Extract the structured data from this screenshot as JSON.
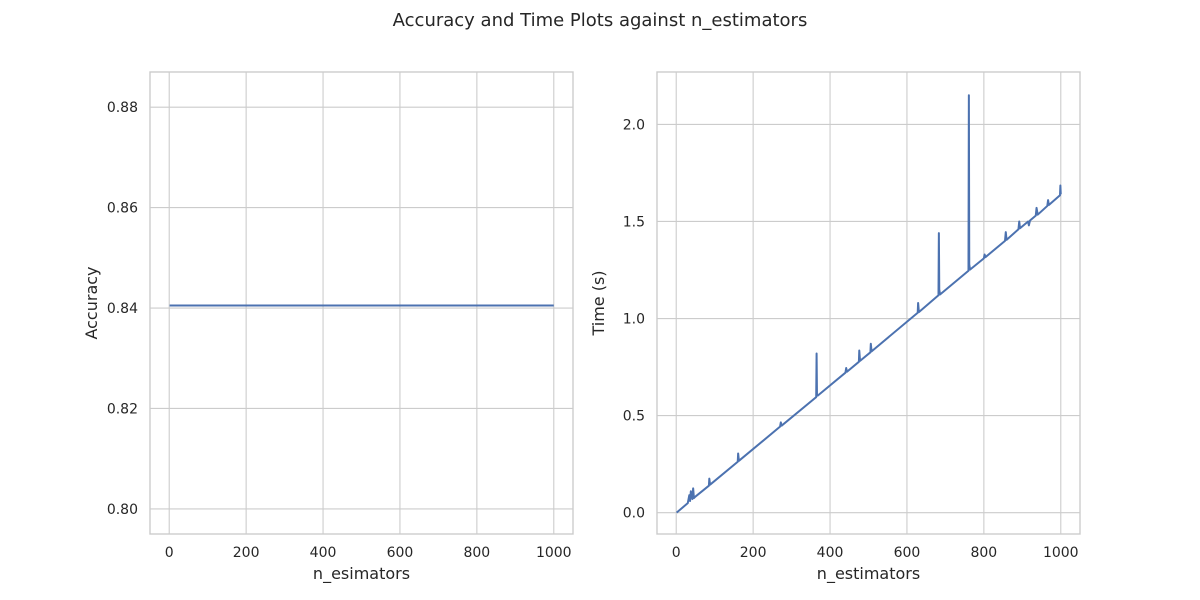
{
  "suptitle": "Accuracy and Time Plots against n_estimators",
  "colors": {
    "line": "#4c72b0",
    "grid": "#cccccc",
    "spine": "#cccccc",
    "text": "#262626",
    "background": "#ffffff"
  },
  "chart_data": [
    {
      "type": "line",
      "title": "",
      "xlabel": "n_esimators",
      "ylabel": "Accuracy",
      "xlim": [
        -50,
        1050
      ],
      "ylim": [
        0.795,
        0.887
      ],
      "xticks": [
        0,
        200,
        400,
        600,
        800,
        1000
      ],
      "xtick_labels": [
        "0",
        "200",
        "400",
        "600",
        "800",
        "1000"
      ],
      "yticks": [
        0.8,
        0.82,
        0.84,
        0.86,
        0.88
      ],
      "ytick_labels": [
        "0.80",
        "0.82",
        "0.84",
        "0.86",
        "0.88"
      ],
      "grid": true,
      "series": [
        {
          "x": [
            1,
            1000
          ],
          "y": [
            0.8405,
            0.8405
          ]
        }
      ]
    },
    {
      "type": "line",
      "title": "",
      "xlabel": "n_estimators",
      "ylabel": "Time (s)",
      "xlim": [
        -50,
        1050
      ],
      "ylim": [
        -0.11,
        2.27
      ],
      "xticks": [
        0,
        200,
        400,
        600,
        800,
        1000
      ],
      "xtick_labels": [
        "0",
        "200",
        "400",
        "600",
        "800",
        "1000"
      ],
      "yticks": [
        0.0,
        0.5,
        1.0,
        1.5,
        2.0
      ],
      "ytick_labels": [
        "0.0",
        "0.5",
        "1.0",
        "1.5",
        "2.0"
      ],
      "grid": true,
      "series": [
        {
          "x": [
            1,
            30,
            34,
            36,
            38,
            42,
            44,
            46,
            50,
            85,
            86,
            88,
            160,
            161,
            163,
            270,
            272,
            274,
            364,
            365,
            366,
            368,
            440,
            442,
            444,
            475,
            476,
            478,
            505,
            506,
            508,
            628,
            629,
            631,
            682,
            683,
            684,
            686,
            760,
            761,
            762,
            764,
            800,
            802,
            804,
            855,
            857,
            859,
            890,
            892,
            894,
            915,
            917,
            920,
            935,
            937,
            940,
            965,
            967,
            969,
            998,
            999,
            1000
          ],
          "y": [
            0.0,
            0.049,
            0.09,
            0.06,
            0.11,
            0.07,
            0.125,
            0.075,
            0.083,
            0.139,
            0.175,
            0.144,
            0.262,
            0.305,
            0.267,
            0.443,
            0.465,
            0.448,
            0.595,
            0.82,
            0.61,
            0.603,
            0.721,
            0.745,
            0.726,
            0.777,
            0.835,
            0.782,
            0.826,
            0.87,
            0.831,
            1.03,
            1.08,
            1.033,
            1.12,
            1.44,
            1.15,
            1.124,
            1.246,
            2.15,
            1.28,
            1.252,
            1.31,
            1.33,
            1.316,
            1.4,
            1.445,
            1.405,
            1.46,
            1.5,
            1.465,
            1.5,
            1.48,
            1.505,
            1.53,
            1.57,
            1.535,
            1.58,
            1.61,
            1.585,
            1.635,
            1.685,
            1.64
          ]
        }
      ]
    }
  ]
}
